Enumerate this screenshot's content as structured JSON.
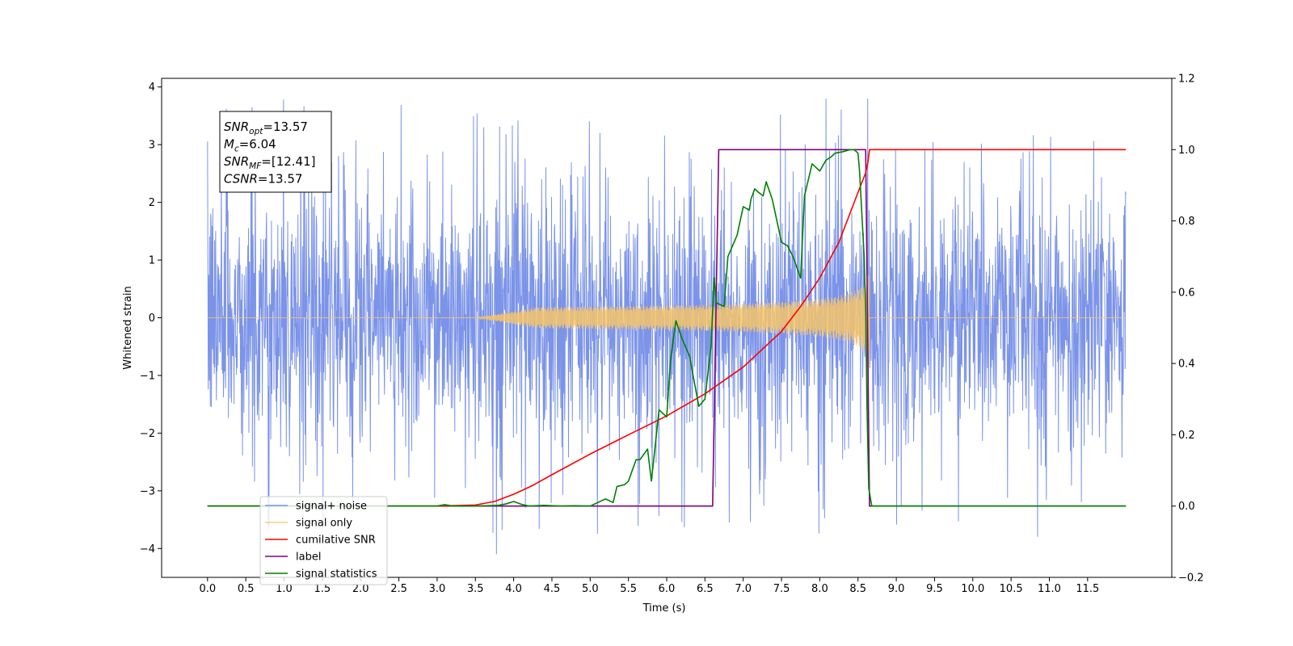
{
  "chart_data": {
    "type": "line",
    "xlabel": "Time (s)",
    "ylabel": "Whitened strain",
    "xlim": [
      -0.6,
      12.6
    ],
    "ylim": [
      -4.5,
      4.15
    ],
    "ylim_right": [
      -0.2,
      1.2
    ],
    "x_ticks": [
      0.0,
      0.5,
      1.0,
      1.5,
      2.0,
      2.5,
      3.0,
      3.5,
      4.0,
      4.5,
      5.0,
      5.5,
      6.0,
      6.5,
      7.0,
      7.5,
      8.0,
      8.5,
      9.0,
      9.5,
      10.0,
      10.5,
      11.0,
      11.5
    ],
    "x_tick_labels": [
      "0.0",
      "0.5",
      "1.0",
      "1.5",
      "2.0",
      "2.5",
      "3.0",
      "3.5",
      "4.0",
      "4.5",
      "5.0",
      "5.5",
      "6.0",
      "6.5",
      "7.0",
      "7.5",
      "8.0",
      "8.5",
      "9.0",
      "9.5",
      "10.0",
      "10.5",
      "11.0",
      "11.5"
    ],
    "y_ticks": [
      -4,
      -3,
      -2,
      -1,
      0,
      1,
      2,
      3,
      4
    ],
    "y_tick_labels": [
      "−4",
      "−3",
      "−2",
      "−1",
      "0",
      "1",
      "2",
      "3",
      "4"
    ],
    "y_right_ticks": [
      -0.2,
      0.0,
      0.2,
      0.4,
      0.6,
      0.8,
      1.0,
      1.2
    ],
    "y_right_tick_labels": [
      "−0.2",
      "0.0",
      "0.2",
      "0.4",
      "0.6",
      "0.8",
      "1.0",
      "1.2"
    ],
    "grid": false,
    "legend_position": "bottom-left",
    "annotation": {
      "lines": [
        {
          "sym": "SNR",
          "sub": "opt",
          "val": "=13.57"
        },
        {
          "sym": "M",
          "sub": "c",
          "val": "=6.04"
        },
        {
          "sym": "SNR",
          "sub": "MF",
          "val": "=[12.41]"
        },
        {
          "sym": "CSNR",
          "sub": "",
          "val": "=13.57"
        }
      ]
    },
    "series": [
      {
        "name": "signal+ noise",
        "color": "#7b93e8",
        "axis": "left",
        "kind": "noise",
        "x_range": [
          0.0,
          12.0
        ],
        "amplitude_typical": 2.0,
        "amplitude_peak": 3.8
      },
      {
        "name": "signal only",
        "color": "#f6c46a",
        "axis": "left",
        "kind": "chirp",
        "x_range": [
          0.0,
          12.0
        ],
        "onset": 3.5,
        "merger": 8.65,
        "peak_amplitude": 0.9
      },
      {
        "name": "cumilative SNR",
        "color": "#ff0000",
        "axis": "right",
        "x": [
          0.0,
          3.0,
          3.5,
          3.75,
          4.0,
          4.25,
          4.5,
          5.0,
          5.5,
          6.0,
          6.5,
          7.0,
          7.5,
          7.75,
          8.0,
          8.25,
          8.5,
          8.6,
          8.63,
          8.65,
          9.0,
          12.0
        ],
        "y": [
          0.0,
          0.0,
          0.003,
          0.013,
          0.033,
          0.058,
          0.088,
          0.146,
          0.2,
          0.253,
          0.315,
          0.39,
          0.49,
          0.56,
          0.64,
          0.74,
          0.88,
          0.935,
          0.965,
          1.0,
          1.0,
          1.0
        ]
      },
      {
        "name": "label",
        "color": "#800080",
        "axis": "right",
        "x": [
          0.0,
          6.6,
          6.68,
          8.6,
          8.65,
          12.0
        ],
        "y": [
          0.0,
          0.0,
          1.0,
          1.0,
          0.0,
          0.0
        ]
      },
      {
        "name": "signal statistics",
        "color": "#008000",
        "axis": "right",
        "x": [
          0.0,
          3.0,
          3.1,
          3.2,
          3.5,
          3.8,
          3.9,
          4.0,
          4.1,
          4.2,
          4.4,
          4.6,
          4.8,
          5.0,
          5.1,
          5.2,
          5.3,
          5.35,
          5.45,
          5.5,
          5.6,
          5.65,
          5.75,
          5.8,
          5.9,
          6.0,
          6.05,
          6.12,
          6.2,
          6.3,
          6.35,
          6.42,
          6.5,
          6.58,
          6.62,
          6.65,
          6.75,
          6.8,
          6.92,
          7.0,
          7.08,
          7.1,
          7.15,
          7.2,
          7.26,
          7.3,
          7.38,
          7.5,
          7.58,
          7.65,
          7.75,
          7.8,
          7.9,
          8.0,
          8.08,
          8.15,
          8.2,
          8.3,
          8.4,
          8.45,
          8.5,
          8.52,
          8.58,
          8.6,
          8.62,
          8.64,
          8.68,
          8.72,
          9.0,
          12.0
        ],
        "y": [
          0.0,
          0.0,
          0.004,
          0.0,
          0.0,
          0.002,
          0.006,
          0.013,
          0.005,
          0.0,
          0.002,
          0.0,
          0.001,
          0.0,
          0.01,
          0.02,
          0.01,
          0.055,
          0.06,
          0.07,
          0.13,
          0.13,
          0.16,
          0.07,
          0.27,
          0.25,
          0.41,
          0.52,
          0.47,
          0.42,
          0.36,
          0.28,
          0.3,
          0.45,
          0.64,
          0.57,
          0.56,
          0.7,
          0.76,
          0.84,
          0.83,
          0.86,
          0.89,
          0.88,
          0.87,
          0.91,
          0.86,
          0.74,
          0.73,
          0.7,
          0.64,
          0.87,
          0.96,
          0.94,
          0.97,
          0.98,
          0.99,
          0.994,
          1.0,
          1.0,
          0.99,
          0.94,
          0.7,
          0.55,
          0.25,
          0.05,
          0.0,
          0.0,
          0.0,
          0.0
        ]
      }
    ],
    "legend_entries": [
      "signal+ noise",
      "signal only",
      "cumilative SNR",
      "label",
      "signal statistics"
    ]
  }
}
